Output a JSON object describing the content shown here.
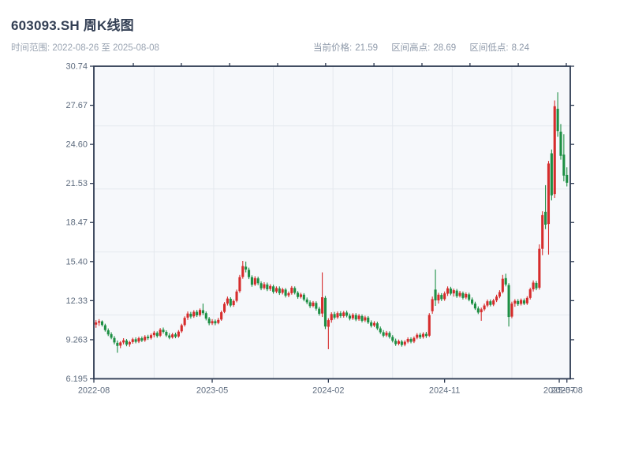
{
  "header": {
    "title": "603093.SH 周K线图",
    "time_range": "时间范围: 2022-08-26 至 2025-08-08",
    "stats": [
      {
        "label": "当前价格:",
        "value": "21.59"
      },
      {
        "label": "区间高点:",
        "value": "28.69"
      },
      {
        "label": "区间低点:",
        "value": "8.24"
      }
    ]
  },
  "chart_data": {
    "type": "candlestick",
    "title": "603093.SH 周K线图",
    "subtitle": "时间范围: 2022-08-26 至 2025-08-08",
    "series_name": "603093.SH weekly OHLC",
    "freq": "weekly",
    "start": "2022-08-26",
    "end": "2025-08-08",
    "current_price": 21.59,
    "range_high": 28.69,
    "range_low": 8.24,
    "ylim": [
      6.195,
      30.74
    ],
    "grid": true,
    "colors": {
      "up": "#d62c2c",
      "down": "#1d8f44",
      "axis": "#2d3a52",
      "grid": "#e4e8ee",
      "plot_bg": "#f6f8fb",
      "tick_label": "#5d6b7e"
    },
    "y_ticks": [
      {
        "label": "30.74",
        "value": 30.74
      },
      {
        "label": "27.67",
        "value": 27.672
      },
      {
        "label": "24.60",
        "value": 24.604
      },
      {
        "label": "21.53",
        "value": 21.536
      },
      {
        "label": "18.47",
        "value": 18.468
      },
      {
        "label": "15.40",
        "value": 15.399
      },
      {
        "label": "12.33",
        "value": 12.331
      },
      {
        "label": "9.263",
        "value": 9.263
      },
      {
        "label": "6.195",
        "value": 6.195
      }
    ],
    "x_ticks": [
      {
        "label": "2022-08",
        "week": -0.7
      },
      {
        "label": "2023-05",
        "week": 38.0
      },
      {
        "label": "2024-02",
        "week": 76.0
      },
      {
        "label": "2024-11",
        "week": 114.0
      },
      {
        "label": "2025-07",
        "week": 151.5
      },
      {
        "label": "2025-08",
        "week": 154.0
      }
    ],
    "grid_y_values": [
      26.05,
      21.1,
      16.15,
      11.2
    ],
    "grid_x_weeks": [
      19.0,
      38.5,
      58.0,
      77.5,
      97.0,
      116.5,
      136.0
    ],
    "top_tick_weeks": [
      12.2,
      27.9,
      43.7,
      59.4,
      75.1,
      90.9,
      106.6,
      122.3,
      138.1,
      153.8
    ],
    "ohlc_columns": [
      "open",
      "high",
      "low",
      "close"
    ],
    "ohlc": [
      [
        10.45,
        10.8,
        10.2,
        10.62
      ],
      [
        10.6,
        10.88,
        10.35,
        10.72
      ],
      [
        10.7,
        10.78,
        10.3,
        10.42
      ],
      [
        10.4,
        10.52,
        9.9,
        10.02
      ],
      [
        10.0,
        10.15,
        9.55,
        9.68
      ],
      [
        9.7,
        9.85,
        9.3,
        9.42
      ],
      [
        9.4,
        9.55,
        8.9,
        9.05
      ],
      [
        9.02,
        9.2,
        8.24,
        8.78
      ],
      [
        8.8,
        9.15,
        8.6,
        9.05
      ],
      [
        9.05,
        9.38,
        8.9,
        9.22
      ],
      [
        9.2,
        9.32,
        8.75,
        8.88
      ],
      [
        8.9,
        9.18,
        8.72,
        9.08
      ],
      [
        9.08,
        9.42,
        8.95,
        9.3
      ],
      [
        9.3,
        9.45,
        8.98,
        9.1
      ],
      [
        9.12,
        9.5,
        9.0,
        9.38
      ],
      [
        9.38,
        9.52,
        9.08,
        9.2
      ],
      [
        9.22,
        9.62,
        9.1,
        9.5
      ],
      [
        9.5,
        9.65,
        9.25,
        9.38
      ],
      [
        9.4,
        9.75,
        9.28,
        9.62
      ],
      [
        9.62,
        9.95,
        9.45,
        9.82
      ],
      [
        9.8,
        9.92,
        9.42,
        9.55
      ],
      [
        9.58,
        10.18,
        9.48,
        10.05
      ],
      [
        10.05,
        10.22,
        9.75,
        9.88
      ],
      [
        9.88,
        10.0,
        9.48,
        9.6
      ],
      [
        9.6,
        9.78,
        9.3,
        9.42
      ],
      [
        9.45,
        9.8,
        9.35,
        9.68
      ],
      [
        9.68,
        9.82,
        9.38,
        9.5
      ],
      [
        9.52,
        10.02,
        9.42,
        9.9
      ],
      [
        9.92,
        10.52,
        9.8,
        10.4
      ],
      [
        10.42,
        11.1,
        10.3,
        10.98
      ],
      [
        11.0,
        11.48,
        10.82,
        11.32
      ],
      [
        11.3,
        11.45,
        10.92,
        11.08
      ],
      [
        11.1,
        11.58,
        10.98,
        11.45
      ],
      [
        11.45,
        11.6,
        11.05,
        11.18
      ],
      [
        11.2,
        11.72,
        11.08,
        11.6
      ],
      [
        11.58,
        12.1,
        11.2,
        11.35
      ],
      [
        11.35,
        11.48,
        10.78,
        10.92
      ],
      [
        10.92,
        11.05,
        10.4,
        10.55
      ],
      [
        10.55,
        10.88,
        10.42,
        10.72
      ],
      [
        10.72,
        10.85,
        10.4,
        10.55
      ],
      [
        10.58,
        10.98,
        10.48,
        10.82
      ],
      [
        10.85,
        11.55,
        10.75,
        11.42
      ],
      [
        11.45,
        12.22,
        11.35,
        12.08
      ],
      [
        12.1,
        12.65,
        11.95,
        12.5
      ],
      [
        12.48,
        12.6,
        11.82,
        11.95
      ],
      [
        11.98,
        12.42,
        11.85,
        12.3
      ],
      [
        12.32,
        13.2,
        12.2,
        13.05
      ],
      [
        13.08,
        14.35,
        12.95,
        14.18
      ],
      [
        14.2,
        15.45,
        14.05,
        15.05
      ],
      [
        15.0,
        15.4,
        14.55,
        14.78
      ],
      [
        14.75,
        14.92,
        14.02,
        14.18
      ],
      [
        14.18,
        14.32,
        13.42,
        13.58
      ],
      [
        13.6,
        14.25,
        13.48,
        14.1
      ],
      [
        14.08,
        14.22,
        13.55,
        13.7
      ],
      [
        13.7,
        13.85,
        13.15,
        13.3
      ],
      [
        13.32,
        13.78,
        13.2,
        13.62
      ],
      [
        13.6,
        13.75,
        13.08,
        13.22
      ],
      [
        13.25,
        13.62,
        13.1,
        13.48
      ],
      [
        13.45,
        13.58,
        12.88,
        13.02
      ],
      [
        13.05,
        13.45,
        12.92,
        13.32
      ],
      [
        13.3,
        13.45,
        12.78,
        12.92
      ],
      [
        12.95,
        13.35,
        12.82,
        13.22
      ],
      [
        13.2,
        13.32,
        12.58,
        12.72
      ],
      [
        12.75,
        13.05,
        12.6,
        12.92
      ],
      [
        12.92,
        13.48,
        12.8,
        13.35
      ],
      [
        13.32,
        13.45,
        12.82,
        12.95
      ],
      [
        12.95,
        13.08,
        12.48,
        12.62
      ],
      [
        12.62,
        12.95,
        12.5,
        12.82
      ],
      [
        12.8,
        12.92,
        12.28,
        12.42
      ],
      [
        12.42,
        12.58,
        12.05,
        12.2
      ],
      [
        12.2,
        12.35,
        11.75,
        11.9
      ],
      [
        11.92,
        12.3,
        11.8,
        12.18
      ],
      [
        12.15,
        12.28,
        11.55,
        11.7
      ],
      [
        11.7,
        11.85,
        11.15,
        11.3
      ],
      [
        11.32,
        14.55,
        11.05,
        12.6
      ],
      [
        12.55,
        12.7,
        10.1,
        10.3
      ],
      [
        10.28,
        10.95,
        8.52,
        10.8
      ],
      [
        10.8,
        11.42,
        10.6,
        11.28
      ],
      [
        11.28,
        11.45,
        10.85,
        11.0
      ],
      [
        11.02,
        11.48,
        10.9,
        11.35
      ],
      [
        11.35,
        11.5,
        10.98,
        11.12
      ],
      [
        11.12,
        11.52,
        11.0,
        11.4
      ],
      [
        11.4,
        11.55,
        11.02,
        11.15
      ],
      [
        11.15,
        11.32,
        10.78,
        10.92
      ],
      [
        10.95,
        11.35,
        10.82,
        11.22
      ],
      [
        11.2,
        11.35,
        10.72,
        10.85
      ],
      [
        10.88,
        11.28,
        10.75,
        11.15
      ],
      [
        11.12,
        11.25,
        10.62,
        10.75
      ],
      [
        10.78,
        11.15,
        10.65,
        11.02
      ],
      [
        11.0,
        11.12,
        10.5,
        10.62
      ],
      [
        10.62,
        10.78,
        10.22,
        10.35
      ],
      [
        10.38,
        10.72,
        10.25,
        10.58
      ],
      [
        10.55,
        10.68,
        10.02,
        10.15
      ],
      [
        10.15,
        10.3,
        9.72,
        9.85
      ],
      [
        9.85,
        10.02,
        9.45,
        9.58
      ],
      [
        9.6,
        9.95,
        9.48,
        9.82
      ],
      [
        9.8,
        9.92,
        9.35,
        9.48
      ],
      [
        9.48,
        9.62,
        9.05,
        9.18
      ],
      [
        9.18,
        9.35,
        8.78,
        8.92
      ],
      [
        8.95,
        9.28,
        8.82,
        9.15
      ],
      [
        9.12,
        9.25,
        8.72,
        8.85
      ],
      [
        8.88,
        9.22,
        8.75,
        9.1
      ],
      [
        9.1,
        9.45,
        8.98,
        9.32
      ],
      [
        9.32,
        9.45,
        8.98,
        9.1
      ],
      [
        9.12,
        9.52,
        9.0,
        9.4
      ],
      [
        9.42,
        9.78,
        9.3,
        9.65
      ],
      [
        9.65,
        9.8,
        9.32,
        9.45
      ],
      [
        9.48,
        9.85,
        9.35,
        9.72
      ],
      [
        9.72,
        9.88,
        9.4,
        9.55
      ],
      [
        9.58,
        11.35,
        9.48,
        11.2
      ],
      [
        11.5,
        12.65,
        11.3,
        12.45
      ],
      [
        13.2,
        14.78,
        11.92,
        12.35
      ],
      [
        12.35,
        12.95,
        12.1,
        12.8
      ],
      [
        12.78,
        12.92,
        12.3,
        12.45
      ],
      [
        12.45,
        13.05,
        12.32,
        12.9
      ],
      [
        12.88,
        13.45,
        12.7,
        13.3
      ],
      [
        13.28,
        13.42,
        12.75,
        12.88
      ],
      [
        12.9,
        13.28,
        12.65,
        13.15
      ],
      [
        13.12,
        13.25,
        12.55,
        12.68
      ],
      [
        12.7,
        13.1,
        12.58,
        12.95
      ],
      [
        12.92,
        13.05,
        12.42,
        12.55
      ],
      [
        12.58,
        12.98,
        12.45,
        12.85
      ],
      [
        12.82,
        12.95,
        12.28,
        12.4
      ],
      [
        12.42,
        12.58,
        11.98,
        12.1
      ],
      [
        12.1,
        12.25,
        11.6,
        11.72
      ],
      [
        11.72,
        11.88,
        11.28,
        11.4
      ],
      [
        11.42,
        11.78,
        10.75,
        11.65
      ],
      [
        11.65,
        12.1,
        11.52,
        11.95
      ],
      [
        11.95,
        12.42,
        11.82,
        12.28
      ],
      [
        12.28,
        12.42,
        11.88,
        12.0
      ],
      [
        12.02,
        12.48,
        11.9,
        12.35
      ],
      [
        12.35,
        12.8,
        12.22,
        12.65
      ],
      [
        12.65,
        13.15,
        12.52,
        13.0
      ],
      [
        13.02,
        14.35,
        12.9,
        14.05
      ],
      [
        14.1,
        14.45,
        13.45,
        13.6
      ],
      [
        13.55,
        13.7,
        10.3,
        11.05
      ],
      [
        11.08,
        12.25,
        10.95,
        12.1
      ],
      [
        12.1,
        12.45,
        11.85,
        12.32
      ],
      [
        12.3,
        12.45,
        11.92,
        12.05
      ],
      [
        12.08,
        12.5,
        11.95,
        12.38
      ],
      [
        12.35,
        12.5,
        11.98,
        12.1
      ],
      [
        12.12,
        12.68,
        12.0,
        12.55
      ],
      [
        12.55,
        13.35,
        12.42,
        13.22
      ],
      [
        13.22,
        13.92,
        13.05,
        13.75
      ],
      [
        13.72,
        13.88,
        13.15,
        13.3
      ],
      [
        13.35,
        16.75,
        13.2,
        16.4
      ],
      [
        16.4,
        19.35,
        15.9,
        19.05
      ],
      [
        19.3,
        21.4,
        17.95,
        18.3
      ],
      [
        18.35,
        23.3,
        15.95,
        23.1
      ],
      [
        23.9,
        24.2,
        20.2,
        20.6
      ],
      [
        20.7,
        28.05,
        20.4,
        27.6
      ],
      [
        27.4,
        28.69,
        25.2,
        25.65
      ],
      [
        25.6,
        26.2,
        23.4,
        23.7
      ],
      [
        23.8,
        25.4,
        21.7,
        22.15
      ],
      [
        22.2,
        22.8,
        21.3,
        21.59
      ]
    ]
  }
}
